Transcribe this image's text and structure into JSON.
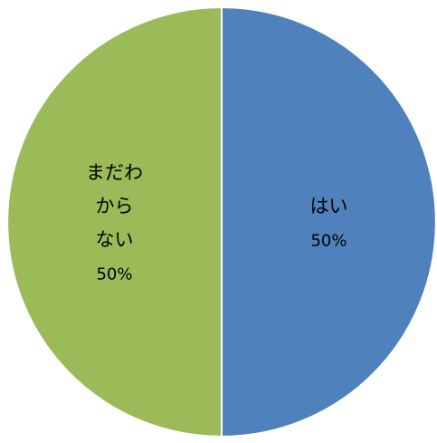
{
  "chart_data": {
    "type": "pie",
    "title": "",
    "slices": [
      {
        "label": "はい",
        "label_lines": [
          "はい"
        ],
        "value": 50,
        "display": "50%",
        "color": "#4F81BD"
      },
      {
        "label": "まだわからない",
        "label_lines": [
          "まだわ",
          "から",
          "ない"
        ],
        "value": 50,
        "display": "50%",
        "color": "#9BBB59"
      }
    ],
    "start": "12 o'clock",
    "direction": "clockwise",
    "legend": "none"
  }
}
